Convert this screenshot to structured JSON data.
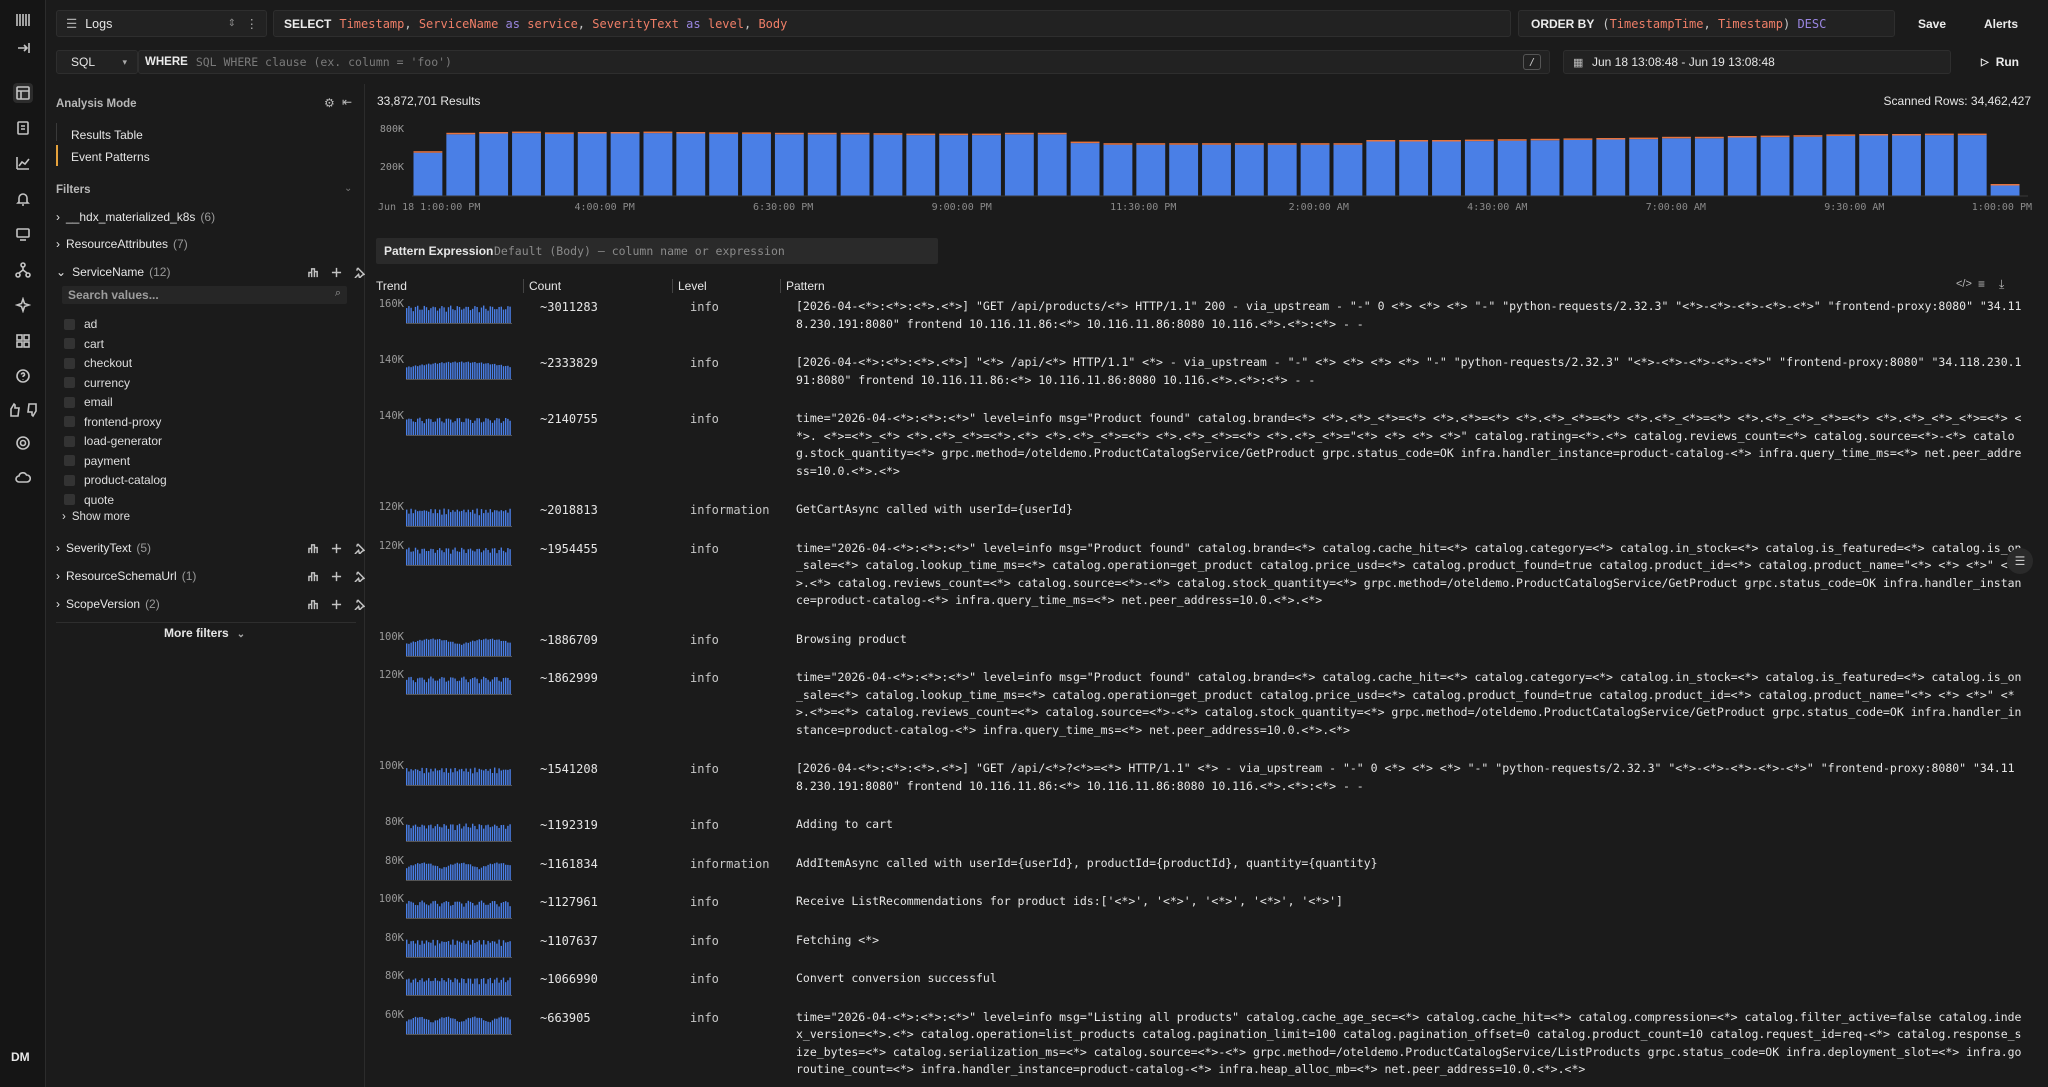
{
  "source": {
    "label": "Logs"
  },
  "select": {
    "keyword": "SELECT",
    "parts": [
      {
        "t": "Timestamp",
        "c": "col"
      },
      {
        "t": ", ",
        "c": "pl"
      },
      {
        "t": "ServiceName",
        "c": "col"
      },
      {
        "t": " as ",
        "c": "as"
      },
      {
        "t": "service",
        "c": "col"
      },
      {
        "t": ", ",
        "c": "pl"
      },
      {
        "t": "SeverityText",
        "c": "col"
      },
      {
        "t": " as ",
        "c": "as"
      },
      {
        "t": "level",
        "c": "col"
      },
      {
        "t": ", ",
        "c": "pl"
      },
      {
        "t": "Body",
        "c": "col"
      }
    ]
  },
  "orderby": {
    "keyword": "ORDER BY",
    "parts": [
      {
        "t": "(",
        "c": "pl"
      },
      {
        "t": "TimestampTime",
        "c": "col"
      },
      {
        "t": ", ",
        "c": "pl"
      },
      {
        "t": "Timestamp",
        "c": "col"
      },
      {
        "t": ") ",
        "c": "pl"
      },
      {
        "t": "DESC",
        "c": "as"
      }
    ]
  },
  "toolbar": {
    "save": "Save",
    "alerts": "Alerts",
    "run": "Run",
    "slash": "/"
  },
  "where": {
    "lang": "SQL",
    "keyword": "WHERE",
    "placeholder": "SQL WHERE clause (ex. column = 'foo')"
  },
  "daterange": "Jun 18 13:08:48 - Jun 19 13:08:48",
  "sidebar": {
    "mode_title": "Analysis Mode",
    "modes": [
      "Results Table",
      "Event Patterns"
    ],
    "filters_title": "Filters",
    "groups_top": [
      {
        "name": "__hdx_materialized_k8s",
        "count": "(6)"
      },
      {
        "name": "ResourceAttributes",
        "count": "(7)"
      }
    ],
    "service": {
      "name": "ServiceName",
      "count": "(12)",
      "search_placeholder": "Search values...",
      "values": [
        "ad",
        "cart",
        "checkout",
        "currency",
        "email",
        "frontend-proxy",
        "load-generator",
        "payment",
        "product-catalog",
        "quote"
      ],
      "show_more": "Show more"
    },
    "groups_bottom": [
      {
        "name": "SeverityText",
        "count": "(5)"
      },
      {
        "name": "ResourceSchemaUrl",
        "count": "(1)"
      },
      {
        "name": "ScopeVersion",
        "count": "(2)"
      }
    ],
    "more_filters": "More filters"
  },
  "results": {
    "count": "33,872,701 Results",
    "scanned": "Scanned Rows: 34,462,427"
  },
  "chart_data": {
    "type": "bar",
    "ylabels": [
      "800K",
      "200K"
    ],
    "xlabels": [
      "Jun 18 1:00:00 PM",
      "4:00:00 PM",
      "6:30:00 PM",
      "9:00:00 PM",
      "11:30:00 PM",
      "2:00:00 AM",
      "4:30:00 AM",
      "7:00:00 AM",
      "9:30:00 AM",
      "1:00:00 PM"
    ],
    "values": [
      560,
      790,
      800,
      805,
      795,
      800,
      800,
      805,
      800,
      795,
      795,
      790,
      790,
      790,
      785,
      780,
      780,
      780,
      790,
      790,
      680,
      660,
      660,
      660,
      660,
      660,
      660,
      660,
      660,
      700,
      700,
      700,
      705,
      710,
      715,
      720,
      725,
      730,
      740,
      740,
      750,
      755,
      760,
      770,
      775,
      775,
      780,
      780,
      150
    ],
    "ymax": 900,
    "accent": "#4a7fe6",
    "secondary": "#e6733d"
  },
  "pattern_expr": {
    "label": "Pattern Expression",
    "placeholder": "Default (Body) — column name or expression"
  },
  "table": {
    "headers": [
      "Trend",
      "Count",
      "Level",
      "Pattern"
    ],
    "rows": [
      {
        "trend": "160K",
        "count": "~3011283",
        "level": "info",
        "pattern": "[2026-04-<*>:<*>:<*>.<*>] \"GET /api/products/<*> HTTP/1.1\" 200 - via_upstream - \"-\" 0 <*> <*> <*> \"-\" \"python-requests/2.32.3\" \"<*>-<*>-<*>-<*>-<*>\" \"frontend-proxy:8080\" \"34.118.230.191:8080\" frontend 10.116.11.86:<*> 10.116.11.86:8080 10.116.<*>.<*>:<*> - -"
      },
      {
        "trend": "140K",
        "count": "~2333829",
        "level": "info",
        "pattern": "[2026-04-<*>:<*>:<*>.<*>] \"<*> /api/<*> HTTP/1.1\" <*> - via_upstream - \"-\" <*> <*> <*> <*> \"-\" \"python-requests/2.32.3\" \"<*>-<*>-<*>-<*>-<*>\" \"frontend-proxy:8080\" \"34.118.230.191:8080\" frontend 10.116.11.86:<*> 10.116.11.86:8080 10.116.<*>.<*>:<*> - -"
      },
      {
        "trend": "140K",
        "count": "~2140755",
        "level": "info",
        "pattern": "time=\"2026-04-<*>:<*>:<*>\" level=info msg=\"Product found\" catalog.brand=<*> <*>.<*>_<*>=<*> <*>.<*>=<*> <*>.<*>_<*>=<*> <*>.<*>_<*>=<*> <*>.<*>_<*>_<*>=<*> <*>.<*>_<*>_<*>=<*> <*>. <*>=<*>_<*> <*>.<*>_<*>=<*>.<*> <*>.<*>_<*>=<*> <*>.<*>_<*>=<*> <*>.<*>_<*>=\"<*> <*> <*> <*>\" catalog.rating=<*>.<*> catalog.reviews_count=<*> catalog.source=<*>-<*> catalog.stock_quantity=<*> grpc.method=/oteldemo.ProductCatalogService/GetProduct grpc.status_code=OK infra.handler_instance=product-catalog-<*> infra.query_time_ms=<*> net.peer_address=10.0.<*>.<*>"
      },
      {
        "trend": "120K",
        "count": "~2018813",
        "level": "information",
        "pattern": "GetCartAsync called with userId={userId}"
      },
      {
        "trend": "120K",
        "count": "~1954455",
        "level": "info",
        "pattern": "time=\"2026-04-<*>:<*>:<*>\" level=info msg=\"Product found\" catalog.brand=<*> catalog.cache_hit=<*> catalog.category=<*> catalog.in_stock=<*> catalog.is_featured=<*> catalog.is_on_sale=<*> catalog.lookup_time_ms=<*> catalog.operation=get_product catalog.price_usd=<*> catalog.product_found=true catalog.product_id=<*> catalog.product_name=\"<*> <*> <*>\" <*>.<*> catalog.reviews_count=<*> catalog.source=<*>-<*> catalog.stock_quantity=<*> grpc.method=/oteldemo.ProductCatalogService/GetProduct grpc.status_code=OK infra.handler_instance=product-catalog-<*> infra.query_time_ms=<*> net.peer_address=10.0.<*>.<*>"
      },
      {
        "trend": "100K",
        "count": "~1886709",
        "level": "info",
        "pattern": "Browsing product"
      },
      {
        "trend": "120K",
        "count": "~1862999",
        "level": "info",
        "pattern": "time=\"2026-04-<*>:<*>:<*>\" level=info msg=\"Product found\" catalog.brand=<*> catalog.cache_hit=<*> catalog.category=<*> catalog.in_stock=<*> catalog.is_featured=<*> catalog.is_on_sale=<*> catalog.lookup_time_ms=<*> catalog.operation=get_product catalog.price_usd=<*> catalog.product_found=true catalog.product_id=<*> catalog.product_name=\"<*> <*> <*>\" <*>.<*>=<*> catalog.reviews_count=<*> catalog.source=<*>-<*> catalog.stock_quantity=<*> grpc.method=/oteldemo.ProductCatalogService/GetProduct grpc.status_code=OK infra.handler_instance=product-catalog-<*> infra.query_time_ms=<*> net.peer_address=10.0.<*>.<*>"
      },
      {
        "trend": "100K",
        "count": "~1541208",
        "level": "info",
        "pattern": "[2026-04-<*>:<*>:<*>.<*>] \"GET /api/<*>?<*>=<*> HTTP/1.1\" <*> - via_upstream - \"-\" 0 <*> <*> <*> \"-\" \"python-requests/2.32.3\" \"<*>-<*>-<*>-<*>-<*>\" \"frontend-proxy:8080\" \"34.118.230.191:8080\" frontend 10.116.11.86:<*> 10.116.11.86:8080 10.116.<*>.<*>:<*> - -"
      },
      {
        "trend": "80K",
        "count": "~1192319",
        "level": "info",
        "pattern": "Adding to cart"
      },
      {
        "trend": "80K",
        "count": "~1161834",
        "level": "information",
        "pattern": "AddItemAsync called with userId={userId}, productId={productId}, quantity={quantity}"
      },
      {
        "trend": "100K",
        "count": "~1127961",
        "level": "info",
        "pattern": "Receive ListRecommendations for product ids:['<*>', '<*>', '<*>', '<*>', '<*>']"
      },
      {
        "trend": "80K",
        "count": "~1107637",
        "level": "info",
        "pattern": "Fetching <*>"
      },
      {
        "trend": "80K",
        "count": "~1066990",
        "level": "info",
        "pattern": "Convert conversion successful"
      },
      {
        "trend": "60K",
        "count": "~663905",
        "level": "info",
        "pattern": "time=\"2026-04-<*>:<*>:<*>\" level=info msg=\"Listing all products\" catalog.cache_age_sec=<*> catalog.cache_hit=<*> catalog.compression=<*> catalog.filter_active=false catalog.index_version=<*>.<*> catalog.operation=list_products catalog.pagination_limit=100 catalog.pagination_offset=0 catalog.product_count=10 catalog.request_id=req-<*> catalog.response_size_bytes=<*> catalog.serialization_ms=<*> catalog.source=<*>-<*> grpc.method=/oteldemo.ProductCatalogService/ListProducts grpc.status_code=OK infra.deployment_slot=<*> infra.goroutine_count=<*> infra.handler_instance=product-catalog-<*> infra.heap_alloc_mb=<*> net.peer_address=10.0.<*>.<*>"
      }
    ]
  },
  "user": {
    "initials": "DM"
  }
}
